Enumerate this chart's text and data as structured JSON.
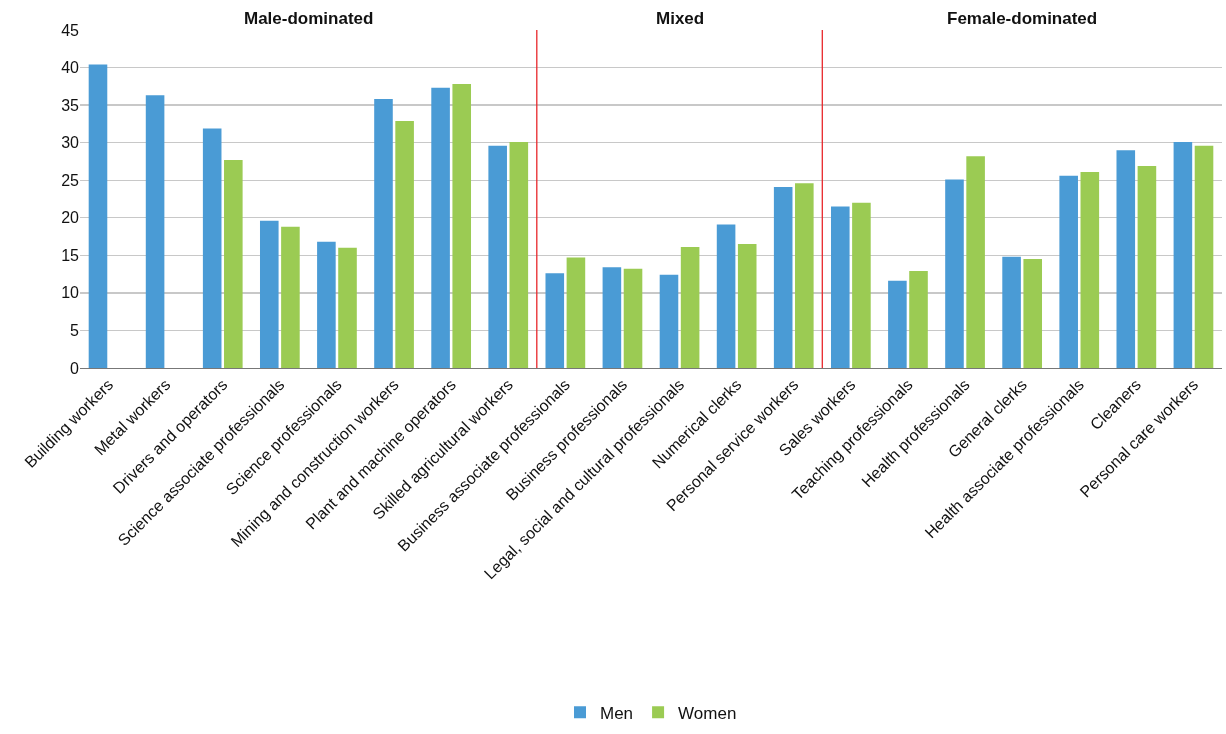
{
  "chart_data": {
    "type": "bar",
    "categories": [
      "Building workers",
      "Metal workers",
      "Drivers and operators",
      "Science associate professionals",
      "Science professionals",
      "Mining and construction workers",
      "Plant and machine operators",
      "Skilled agricultural workers",
      "Business associate professionals",
      "Business professionals",
      "Legal, social and cultural professionals",
      "Numerical clerks",
      "Personal service workers",
      "Sales workers",
      "Teaching professionals",
      "Health professionals",
      "General clerks",
      "Health associate professionals",
      "Cleaners",
      "Personal care workers"
    ],
    "series": [
      {
        "name": "Men",
        "color": "#4a9bd5",
        "values": [
          40.4,
          36.3,
          31.9,
          19.6,
          16.8,
          35.8,
          37.3,
          29.6,
          12.6,
          13.4,
          12.4,
          19.1,
          24.1,
          21.5,
          11.6,
          25.1,
          14.8,
          25.6,
          29.0,
          30.1
        ]
      },
      {
        "name": "Women",
        "color": "#9bcb53",
        "values": [
          null,
          null,
          27.7,
          18.8,
          16.0,
          32.9,
          37.8,
          30.1,
          14.7,
          13.2,
          16.1,
          16.5,
          24.6,
          22.0,
          12.9,
          28.2,
          14.5,
          26.1,
          26.9,
          29.6
        ]
      }
    ],
    "ylim": [
      0,
      45
    ],
    "yticks": [
      0,
      5,
      10,
      15,
      20,
      25,
      30,
      35,
      40,
      45
    ],
    "grid": "y",
    "legend": "bottom",
    "annotations": [
      "Male-dominated",
      "Mixed",
      "Female-dominated"
    ]
  }
}
